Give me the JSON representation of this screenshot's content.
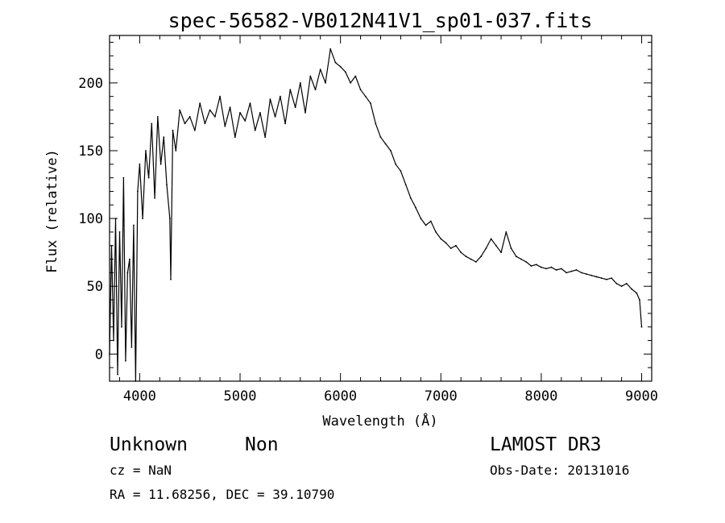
{
  "chart_data": {
    "type": "line",
    "title": "spec-56582-VB012N41V1_sp01-037.fits",
    "xlabel": "Wavelength (Å)",
    "ylabel": "Flux (relative)",
    "xlim": [
      3700,
      9100
    ],
    "ylim": [
      -20,
      235
    ],
    "xticks": [
      4000,
      5000,
      6000,
      7000,
      8000,
      9000
    ],
    "yticks": [
      0,
      50,
      100,
      150,
      200
    ],
    "grid": false,
    "series": [
      {
        "x": [
          3700,
          3720,
          3740,
          3760,
          3780,
          3800,
          3820,
          3840,
          3860,
          3880,
          3900,
          3920,
          3940,
          3960,
          3980,
          4000,
          4030,
          4060,
          4090,
          4120,
          4150,
          4180,
          4210,
          4240,
          4270,
          4300,
          4310,
          4330,
          4360,
          4400,
          4450,
          4500,
          4550,
          4600,
          4650,
          4700,
          4750,
          4800,
          4850,
          4900,
          4950,
          5000,
          5050,
          5100,
          5150,
          5200,
          5250,
          5300,
          5350,
          5400,
          5450,
          5500,
          5550,
          5600,
          5650,
          5700,
          5750,
          5800,
          5850,
          5900,
          5950,
          6000,
          6050,
          6100,
          6150,
          6200,
          6250,
          6300,
          6350,
          6400,
          6450,
          6500,
          6550,
          6600,
          6650,
          6700,
          6750,
          6800,
          6850,
          6900,
          6950,
          7000,
          7050,
          7100,
          7150,
          7200,
          7250,
          7300,
          7350,
          7400,
          7450,
          7500,
          7550,
          7600,
          7650,
          7700,
          7750,
          7800,
          7850,
          7900,
          7950,
          8000,
          8050,
          8100,
          8150,
          8200,
          8250,
          8300,
          8350,
          8400,
          8450,
          8500,
          8550,
          8600,
          8650,
          8700,
          8750,
          8800,
          8850,
          8900,
          8950,
          8980,
          9000
        ],
        "y": [
          0,
          80,
          10,
          100,
          -15,
          90,
          20,
          130,
          -5,
          60,
          70,
          5,
          95,
          -20,
          120,
          140,
          100,
          150,
          130,
          170,
          115,
          175,
          140,
          160,
          125,
          100,
          55,
          165,
          150,
          180,
          170,
          175,
          165,
          185,
          170,
          180,
          175,
          190,
          168,
          182,
          160,
          178,
          172,
          185,
          165,
          178,
          160,
          188,
          175,
          190,
          170,
          195,
          182,
          200,
          178,
          205,
          195,
          210,
          200,
          225,
          215,
          212,
          208,
          200,
          205,
          195,
          190,
          185,
          170,
          160,
          155,
          150,
          140,
          135,
          125,
          115,
          108,
          100,
          95,
          98,
          90,
          85,
          82,
          78,
          80,
          75,
          72,
          70,
          68,
          72,
          78,
          85,
          80,
          75,
          90,
          78,
          72,
          70,
          68,
          65,
          66,
          64,
          63,
          64,
          62,
          63,
          60,
          61,
          62,
          60,
          59,
          58,
          57,
          56,
          55,
          56,
          52,
          50,
          52,
          48,
          45,
          40,
          20
        ]
      }
    ]
  },
  "labels": {
    "object_class": "Unknown",
    "subclass": "Non",
    "survey": "LAMOST DR3",
    "cz": "cz = NaN",
    "obs_date": "Obs-Date: 20131016",
    "radec": "RA =  11.68256, DEC =  39.10790"
  }
}
